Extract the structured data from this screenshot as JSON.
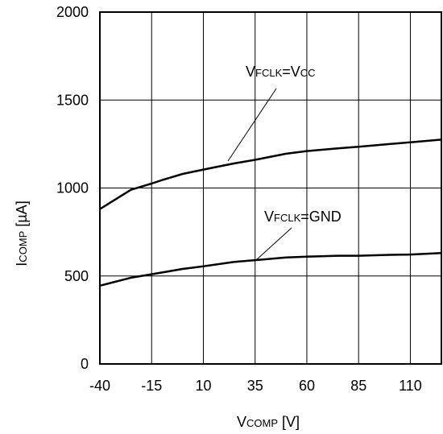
{
  "chart_data": {
    "type": "line",
    "xlabel": {
      "main": "V",
      "sub": "COMP",
      "unit": " [V]"
    },
    "ylabel": {
      "main": "I",
      "sub": "COMP",
      "unit": " [µA]"
    },
    "xlim": [
      -40,
      125
    ],
    "ylim": [
      0,
      2000
    ],
    "xticks": [
      "-40",
      "-15",
      "10",
      "35",
      "60",
      "85",
      "110"
    ],
    "yticks": [
      "0",
      "500",
      "1000",
      "1500",
      "2000"
    ],
    "grid": true,
    "series": [
      {
        "name": "VFCLK=VCC",
        "label": {
          "v1": "V",
          "s1": "FCLK",
          "eq": "=V",
          "s2": "CC"
        },
        "x": [
          -40,
          -25,
          -15,
          -10,
          0,
          10,
          25,
          35,
          50,
          60,
          75,
          85,
          100,
          110,
          125
        ],
        "y": [
          880,
          990,
          1025,
          1045,
          1080,
          1105,
          1140,
          1160,
          1195,
          1210,
          1225,
          1235,
          1250,
          1260,
          1275
        ]
      },
      {
        "name": "VFCLK=GND",
        "label": {
          "v1": "V",
          "s1": "FCLK",
          "eq": "=GND",
          "s2": ""
        },
        "x": [
          -40,
          -25,
          -15,
          0,
          10,
          25,
          35,
          50,
          60,
          75,
          85,
          100,
          110,
          125
        ],
        "y": [
          445,
          490,
          510,
          540,
          555,
          580,
          590,
          605,
          610,
          615,
          615,
          620,
          622,
          630
        ]
      }
    ]
  }
}
